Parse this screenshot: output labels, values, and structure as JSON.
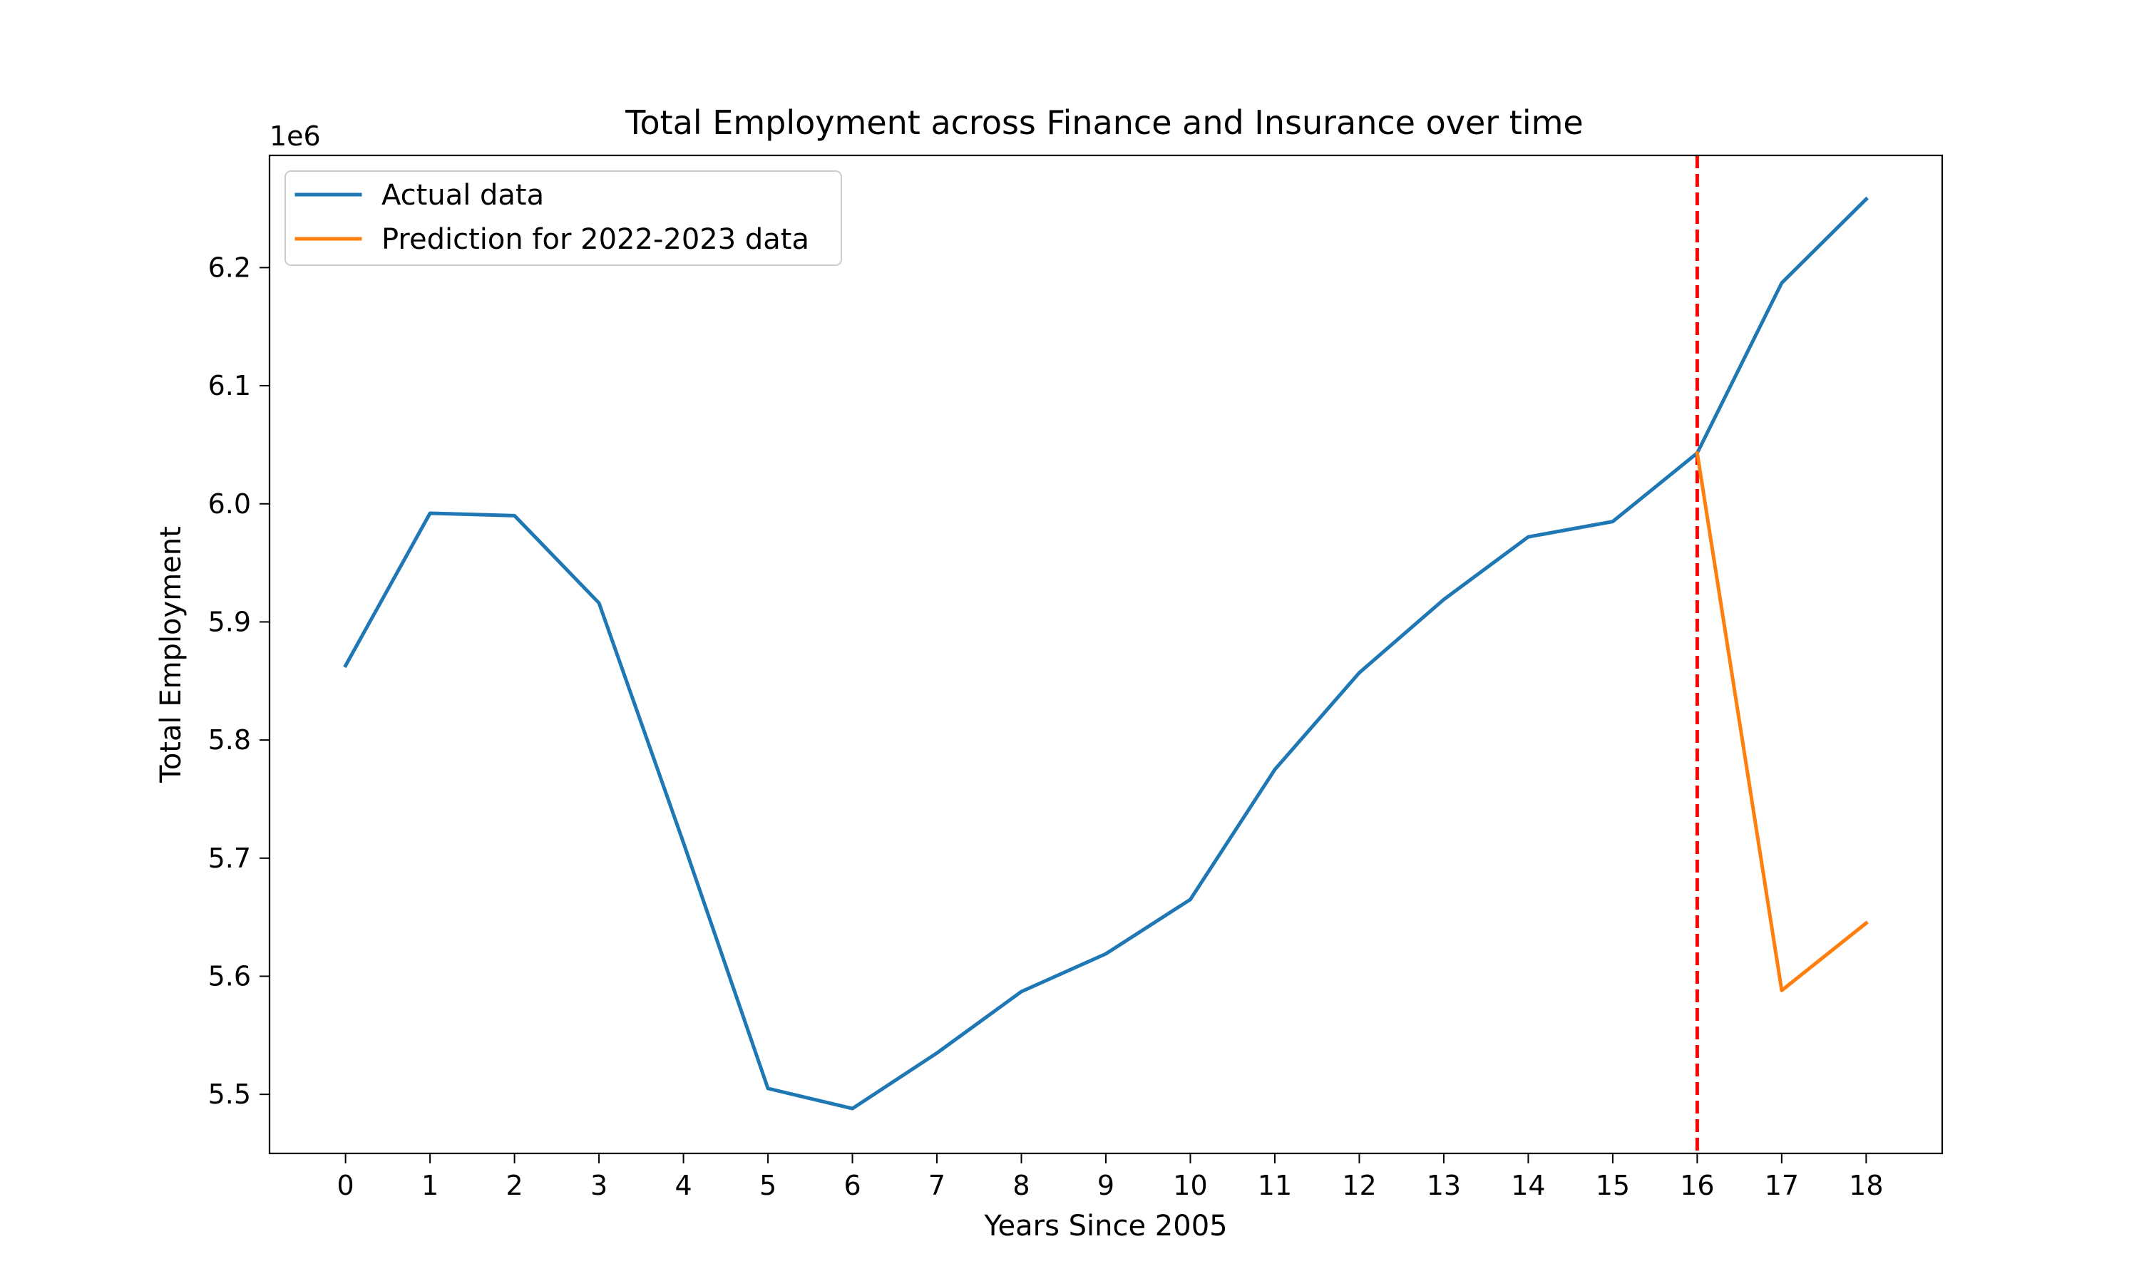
{
  "chart_data": {
    "type": "line",
    "title": "Total Employment across Finance and Insurance over time",
    "xlabel": "Years Since 2005",
    "ylabel": "Total Employment",
    "y_offset_label": "1e6",
    "x_ticks": [
      0,
      1,
      2,
      3,
      4,
      5,
      6,
      7,
      8,
      9,
      10,
      11,
      12,
      13,
      14,
      15,
      16,
      17,
      18
    ],
    "y_ticks": [
      5.5,
      5.6,
      5.7,
      5.8,
      5.9,
      6.0,
      6.1,
      6.2
    ],
    "xlim": [
      -0.9,
      18.9
    ],
    "ylim": [
      5.45,
      6.295
    ],
    "y_scale_factor": 1000000,
    "grid": false,
    "legend_position": "upper-left",
    "series": [
      {
        "name": "Actual data",
        "color": "#1f77b4",
        "x": [
          0,
          1,
          2,
          3,
          4,
          5,
          6,
          7,
          8,
          9,
          10,
          11,
          12,
          13,
          14,
          15,
          16,
          17,
          18
        ],
        "values": [
          5.863,
          5.992,
          5.99,
          5.916,
          5.713,
          5.505,
          5.488,
          5.535,
          5.587,
          5.619,
          5.665,
          5.775,
          5.857,
          5.919,
          5.972,
          5.985,
          6.043,
          6.187,
          6.258
        ]
      },
      {
        "name": "Prediction for 2022-2023 data",
        "color": "#ff7f0e",
        "x": [
          16,
          17,
          18
        ],
        "values": [
          6.043,
          5.588,
          5.645
        ]
      }
    ],
    "vertical_line": {
      "x": 16,
      "color": "#ff0000",
      "style": "dashed"
    }
  }
}
